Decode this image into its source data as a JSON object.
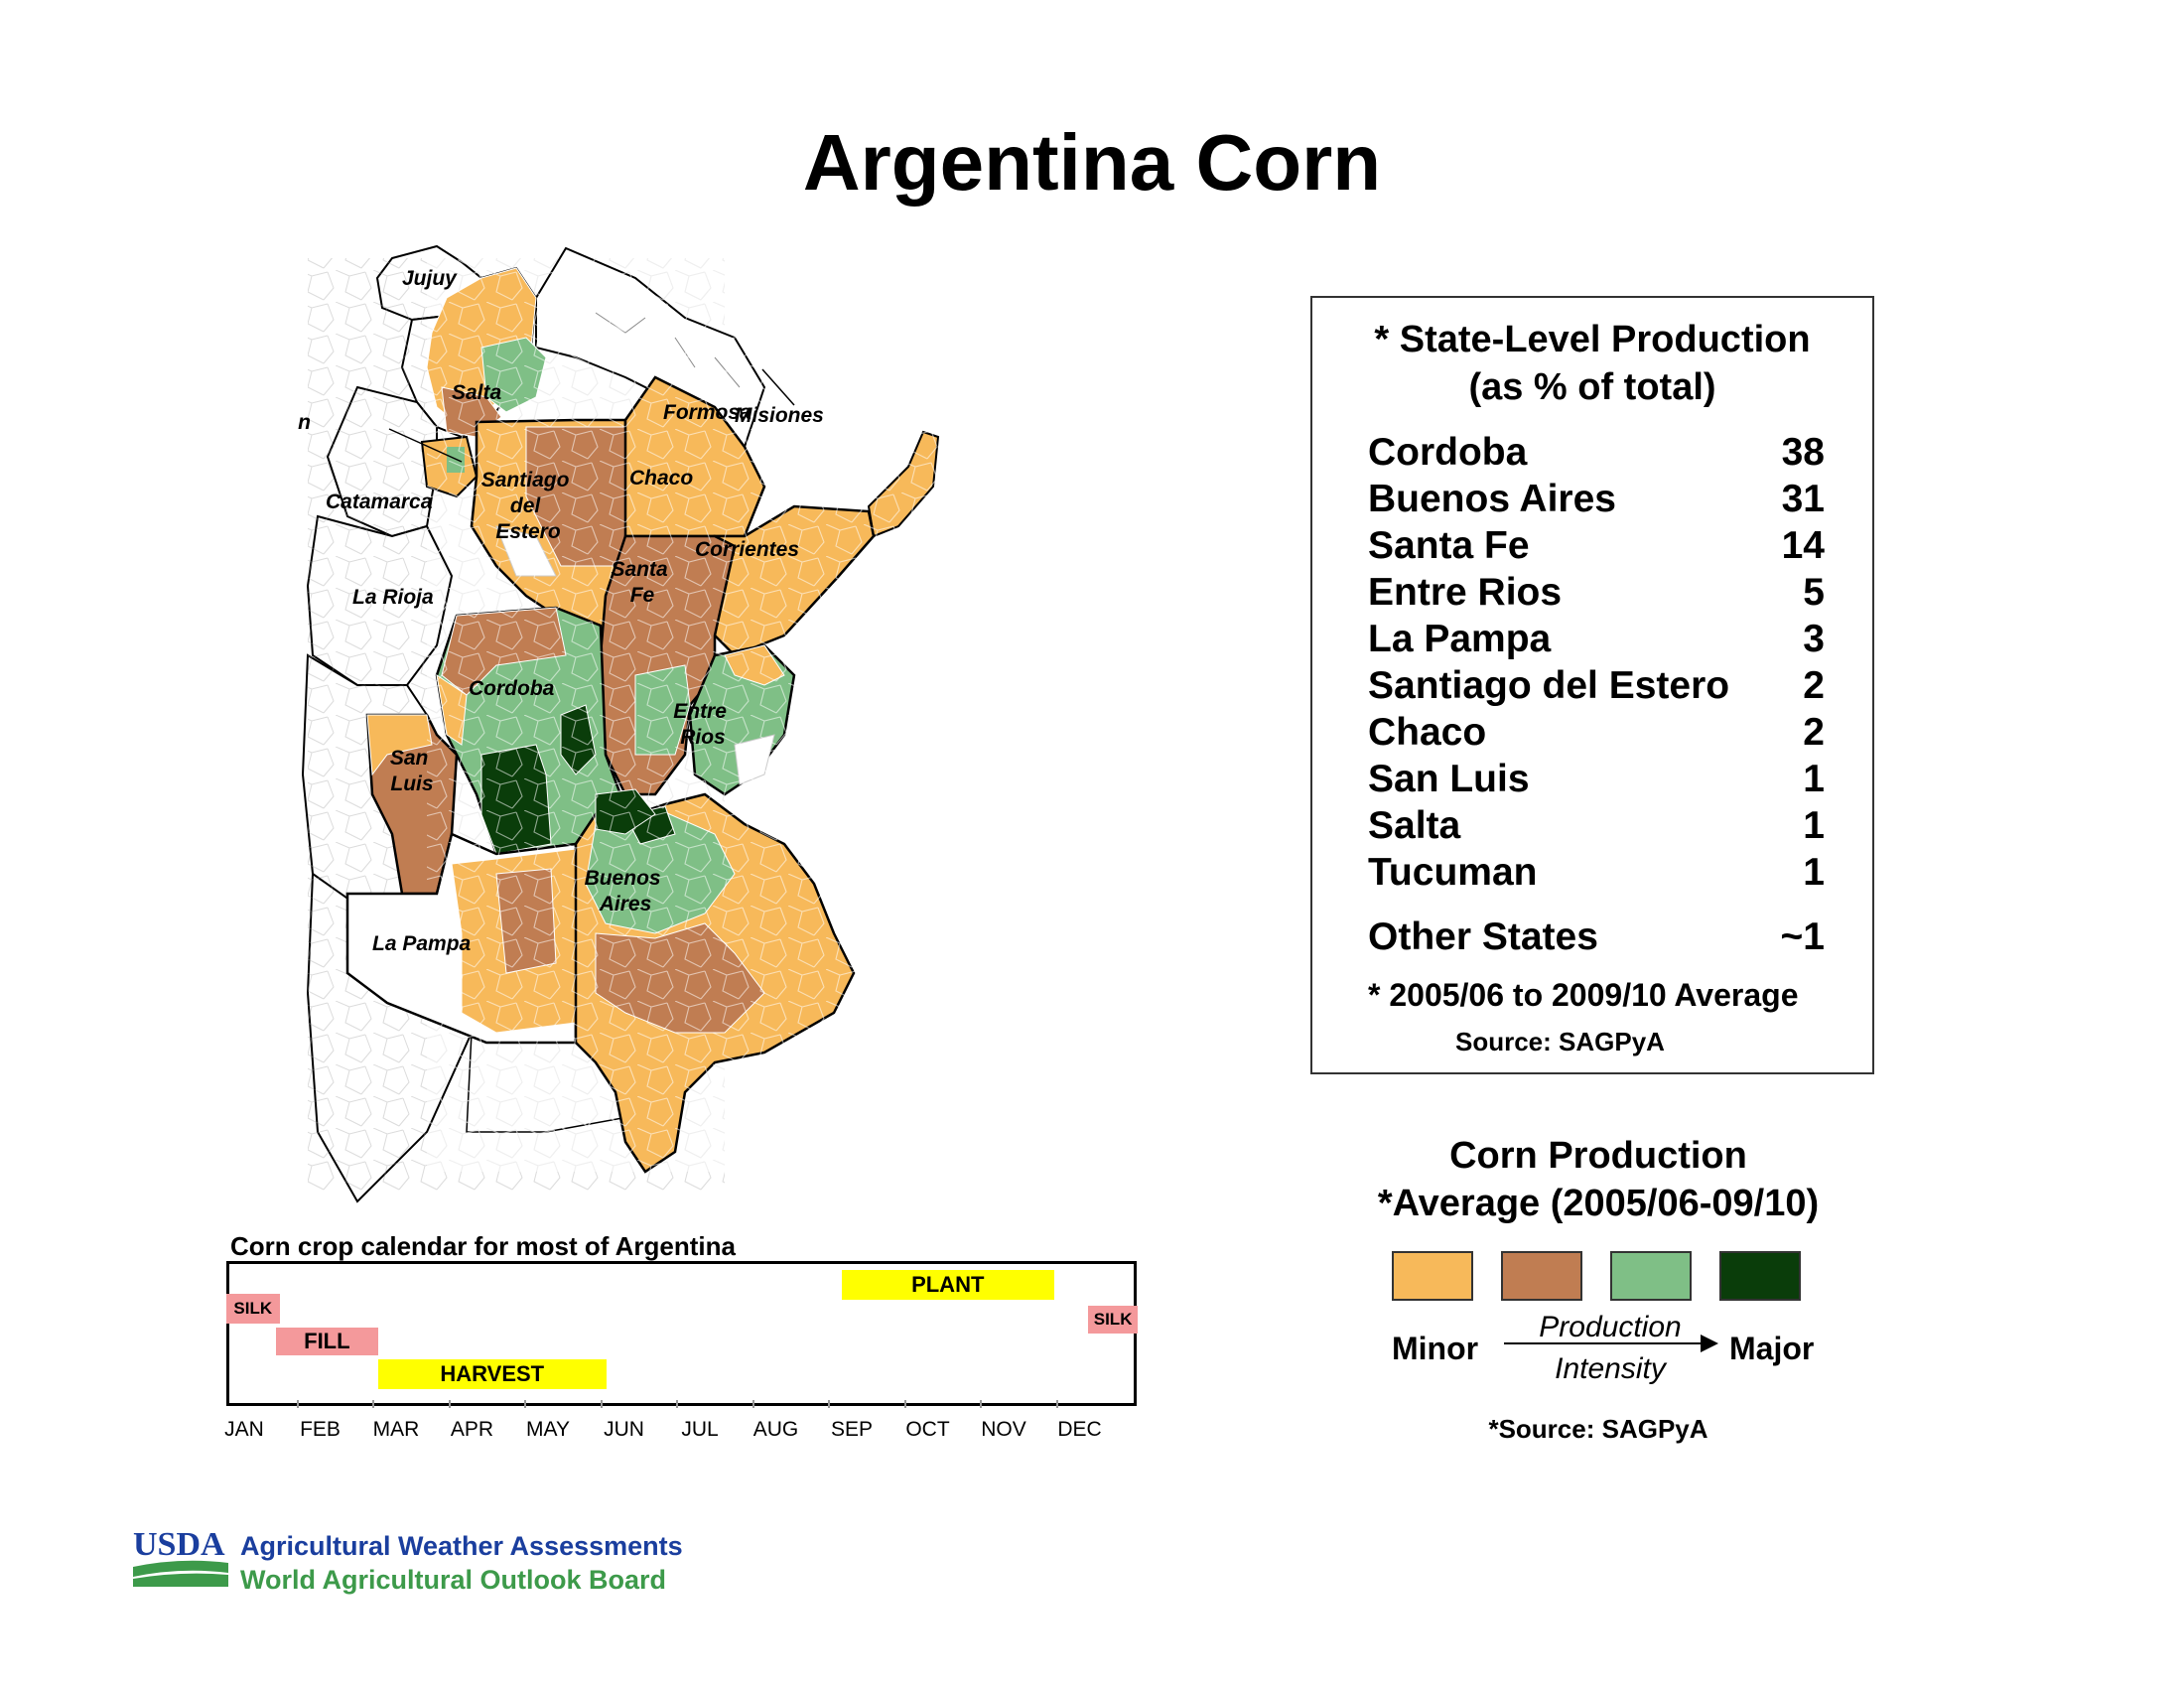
{
  "page": {
    "title": "Argentina Corn"
  },
  "colors": {
    "minor": "#f7b95a",
    "medium": "#c07d52",
    "high": "#7fbf86",
    "major": "#0a3d0a",
    "border": "#000000",
    "usda_blue": "#1a3e9e",
    "usda_green": "#3d9a4a"
  },
  "map": {
    "labels": [
      "Jujuy",
      "Salta",
      "Tucuman",
      "Formosa",
      "Misiones",
      "Catamarca",
      "Santiago del Estero",
      "Chaco",
      "Corrientes",
      "Santa Fe",
      "La Rioja",
      "Cordoba",
      "Entre Rios",
      "San Luis",
      "Buenos Aires",
      "La Pampa"
    ],
    "label_lines": {
      "santiago": [
        "Santiago",
        "del",
        "Estero"
      ],
      "santa_fe": [
        "Santa",
        "Fe"
      ],
      "entre_rios": [
        "Entre",
        "Rios"
      ],
      "san_luis": [
        "San",
        "Luis"
      ],
      "buenos_aires": [
        "Buenos",
        "Aires"
      ]
    }
  },
  "production": {
    "heading_line1": "* State-Level Production",
    "heading_line2": "(as % of total)",
    "rows": [
      {
        "state": "Cordoba",
        "pct": "38"
      },
      {
        "state": "Buenos Aires",
        "pct": "31"
      },
      {
        "state": "Santa Fe",
        "pct": "14"
      },
      {
        "state": "Entre Rios",
        "pct": "5"
      },
      {
        "state": "La Pampa",
        "pct": "3"
      },
      {
        "state": "Santiago del Estero",
        "pct": "2"
      },
      {
        "state": "Chaco",
        "pct": "2"
      },
      {
        "state": "San Luis",
        "pct": "1"
      },
      {
        "state": "Salta",
        "pct": "1"
      },
      {
        "state": "Tucuman",
        "pct": "1"
      }
    ],
    "other": {
      "state": "Other States",
      "pct": "~1"
    },
    "note": "* 2005/06 to 2009/10 Average",
    "source": "Source: SAGPyA"
  },
  "legend": {
    "title_line1": "Corn Production",
    "title_line2": "*Average (2005/06-09/10)",
    "minor": "Minor",
    "major": "Major",
    "mid_line1": "Production",
    "mid_line2": "Intensity",
    "source": "*Source: SAGPyA",
    "intensity_levels": [
      "minor",
      "medium",
      "high",
      "major"
    ]
  },
  "calendar": {
    "title": "Corn crop calendar for most of Argentina",
    "months": [
      "JAN",
      "FEB",
      "MAR",
      "APR",
      "MAY",
      "JUN",
      "JUL",
      "AUG",
      "SEP",
      "OCT",
      "NOV",
      "DEC"
    ],
    "stages": [
      {
        "label": "SILK",
        "start_month": 1.0,
        "end_month": 1.7,
        "color": "#f4999b"
      },
      {
        "label": "FILL",
        "start_month": 1.65,
        "end_month": 3.0,
        "color": "#f4999b"
      },
      {
        "label": "HARVEST",
        "start_month": 3.0,
        "end_month": 6.0,
        "color": "#ffff00"
      },
      {
        "label": "PLANT",
        "start_month": 9.1,
        "end_month": 11.9,
        "color": "#ffff00"
      },
      {
        "label": "SILK",
        "start_month": 12.35,
        "end_month": 13.0,
        "color": "#f4999b"
      }
    ]
  },
  "footer": {
    "logo_text": "USDA",
    "line1": "Agricultural Weather Assessments",
    "line2": "World Agricultural Outlook Board"
  }
}
